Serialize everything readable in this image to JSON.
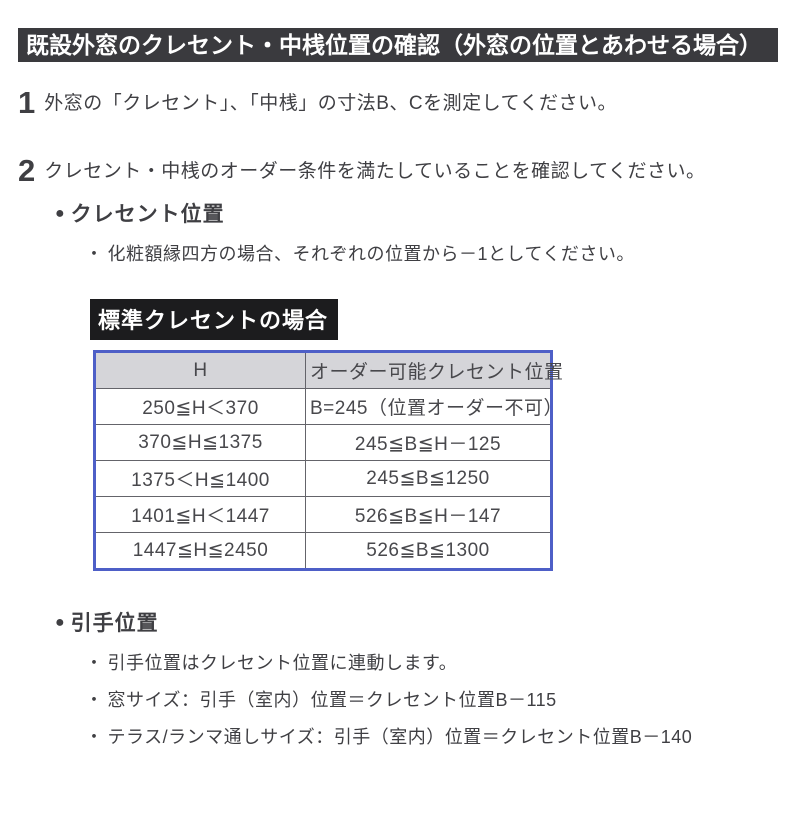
{
  "title_bar": {
    "text": "既設外窓のクレセント・中桟位置の確認（外窓の位置とあわせる場合）"
  },
  "steps": [
    {
      "number": "1",
      "text": "外窓の「クレセント」、「中桟」の寸法B、Cを測定してください。"
    },
    {
      "number": "2",
      "text": "クレセント・中桟のオーダー条件を満たしていることを確認してください。"
    }
  ],
  "crescent_section": {
    "bullet": "●",
    "heading": "クレセント位置",
    "note_bullet": "・",
    "note": "化粧額縁四方の場合、それぞれの位置から－1としてください。"
  },
  "table_label": "標準クレセントの場合",
  "table": {
    "headers": [
      "H",
      "オーダー可能クレセント位置"
    ],
    "rows": [
      [
        "250≦H＜370",
        "B=245（位置オーダー不可）"
      ],
      [
        "370≦H≦1375",
        "245≦B≦H－125"
      ],
      [
        "1375＜H≦1400",
        "245≦B≦1250"
      ],
      [
        "1401≦H＜1447",
        "526≦B≦H－147"
      ],
      [
        "1447≦H≦2450",
        "526≦B≦1300"
      ]
    ]
  },
  "handle_section": {
    "bullet": "●",
    "heading": "引手位置",
    "note_bullet": "・",
    "notes": [
      "引手位置はクレセント位置に連動します。",
      "窓サイズ：引手（室内）位置＝クレセント位置B－115",
      "テラス/ランマ通しサイズ：引手（室内）位置＝クレセント位置B－140"
    ]
  },
  "colors": {
    "title_bar_bg": "#3a3a3e",
    "label_bg": "#1c1c1e",
    "table_border": "#4e5fc7",
    "table_header_bg": "#d5d5d9",
    "text": "#3f3f43"
  }
}
